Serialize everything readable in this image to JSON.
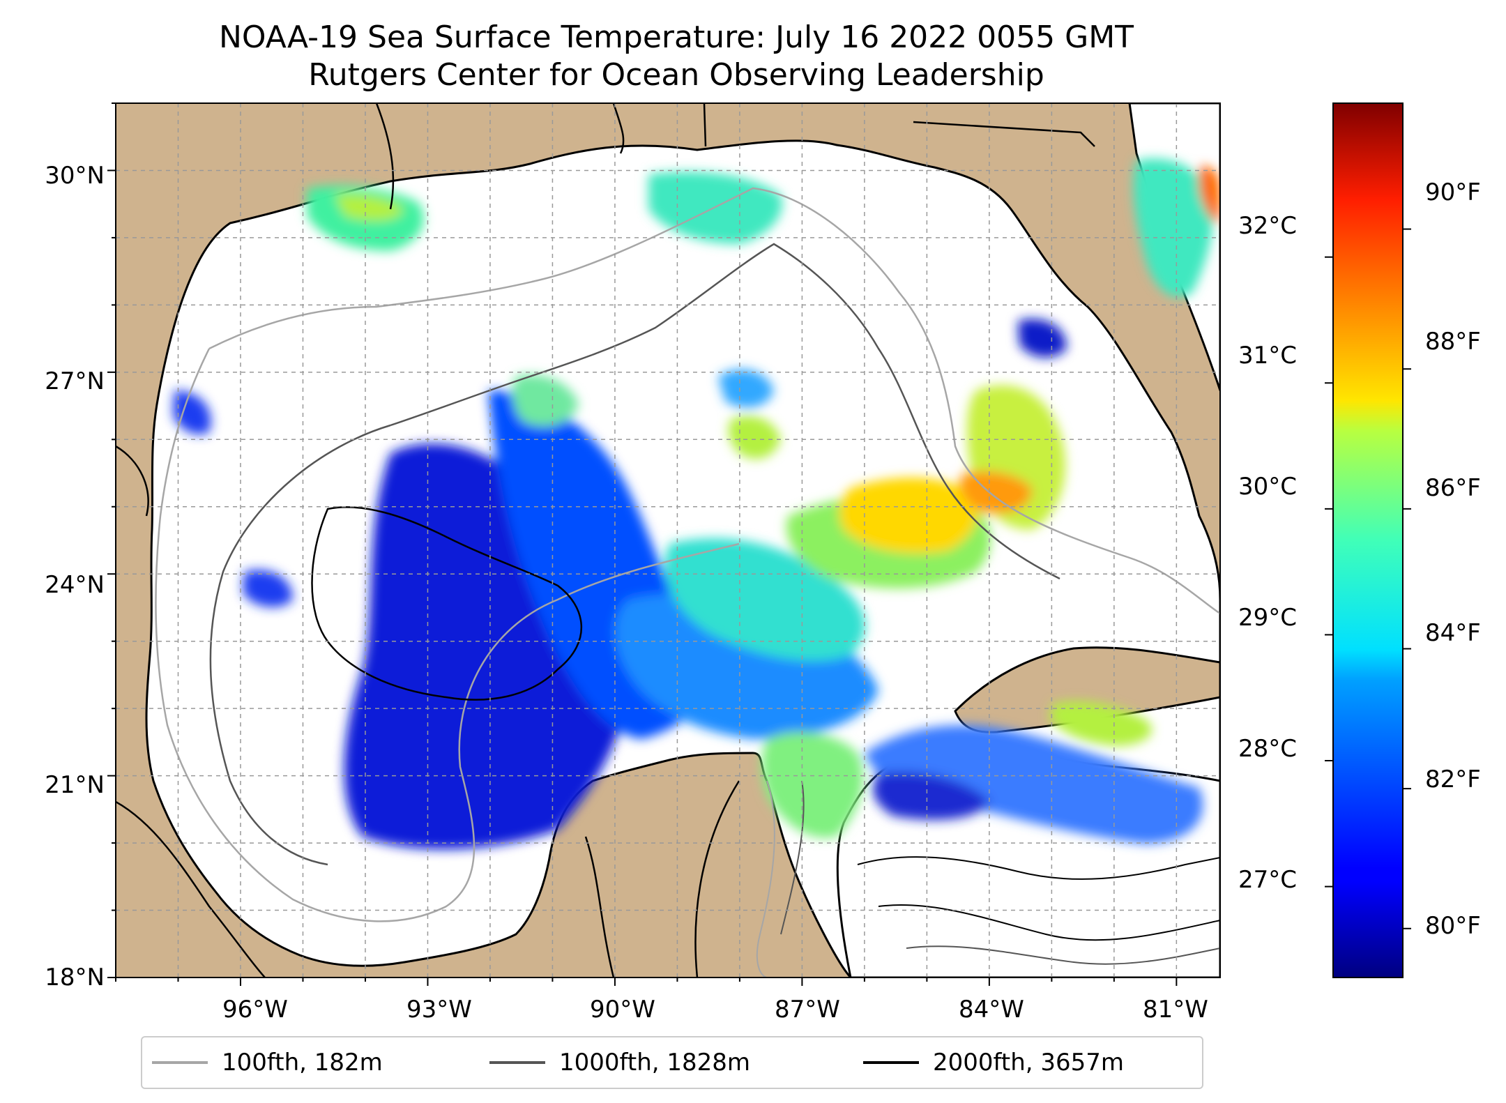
{
  "title": {
    "line1": "NOAA-19 Sea Surface Temperature: July 16 2022 0055 GMT",
    "line2": "Rutgers Center for Ocean Observing Leadership"
  },
  "map": {
    "lon_range": [
      -98,
      -80.3
    ],
    "lat_range": [
      18,
      31
    ],
    "land_color": "#cfb38e",
    "water_color": "#ffffff",
    "gridlines": "on",
    "lat_ticks": [
      {
        "value": 30,
        "label": "30°N"
      },
      {
        "value": 27,
        "label": "27°N"
      },
      {
        "value": 24,
        "label": "24°N"
      },
      {
        "value": 21,
        "label": "21°N"
      },
      {
        "value": 18,
        "label": "18°N"
      }
    ],
    "lon_ticks": [
      {
        "value": -96,
        "label": "96°W"
      },
      {
        "value": -93,
        "label": "93°W"
      },
      {
        "value": -90,
        "label": "90°W"
      },
      {
        "value": -87,
        "label": "87°W"
      },
      {
        "value": -84,
        "label": "84°W"
      },
      {
        "value": -81,
        "label": "81°W"
      }
    ]
  },
  "colorbar": {
    "colormap": "jet",
    "celsius_ticks": [
      {
        "value": 32,
        "label": "32°C"
      },
      {
        "value": 31,
        "label": "31°C"
      },
      {
        "value": 30,
        "label": "30°C"
      },
      {
        "value": 29,
        "label": "29°C"
      },
      {
        "value": 28,
        "label": "28°C"
      },
      {
        "value": 27,
        "label": "27°C"
      }
    ],
    "fahrenheit_ticks": [
      {
        "value": 90,
        "label": "90°F"
      },
      {
        "value": 88,
        "label": "88°F"
      },
      {
        "value": 86,
        "label": "86°F"
      },
      {
        "value": 84,
        "label": "84°F"
      },
      {
        "value": 82,
        "label": "82°F"
      },
      {
        "value": 80,
        "label": "80°F"
      }
    ]
  },
  "legend": {
    "placement": "bottom-center",
    "items": [
      {
        "label": "100fth, 182m",
        "color": "#a6a6a6"
      },
      {
        "label": "1000fth, 1828m",
        "color": "#555555"
      },
      {
        "label": "2000fth, 3657m",
        "color": "#000000"
      }
    ]
  }
}
